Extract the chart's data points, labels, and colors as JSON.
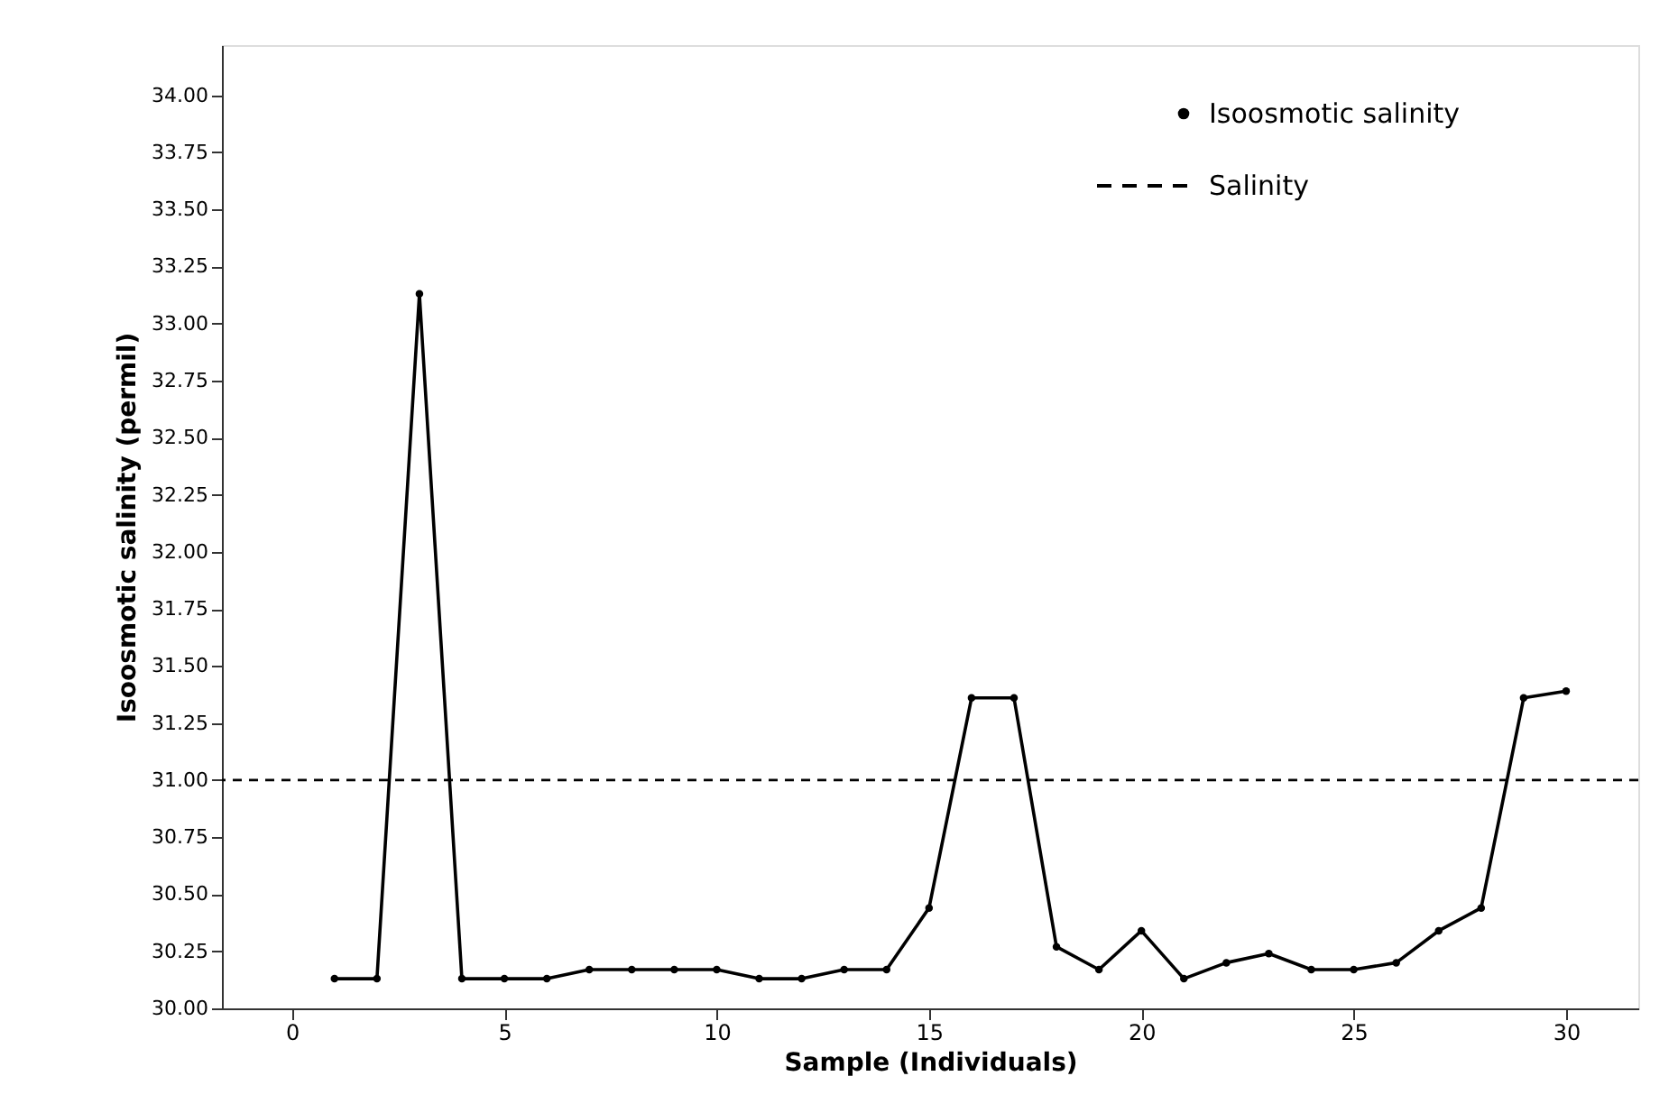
{
  "chart_data": {
    "type": "line",
    "xlabel": "Sample (Individuals)",
    "ylabel": "Isoosmotic salinity (permil)",
    "x": [
      1,
      2,
      3,
      4,
      5,
      6,
      7,
      8,
      9,
      10,
      11,
      12,
      13,
      14,
      15,
      16,
      17,
      18,
      19,
      20,
      21,
      22,
      23,
      24,
      25,
      26,
      27,
      28,
      29,
      30
    ],
    "series": [
      {
        "name": "Isoosmotic salinity",
        "color": "#000000",
        "values": [
          30.13,
          30.13,
          33.13,
          30.13,
          30.13,
          30.13,
          30.17,
          30.17,
          30.17,
          30.17,
          30.13,
          30.13,
          30.17,
          30.17,
          30.44,
          31.36,
          31.36,
          30.27,
          30.17,
          30.34,
          30.13,
          30.2,
          30.24,
          30.17,
          30.17,
          30.2,
          30.34,
          30.44,
          31.36,
          31.39
        ]
      }
    ],
    "ref_lines": [
      {
        "axis": "y",
        "value": 31.0,
        "label": "Salinity",
        "color": "#000000",
        "line_style": "dashed"
      }
    ],
    "xlim": [
      -1.65,
      31.7
    ],
    "ylim": [
      30.0,
      34.22
    ],
    "xticks": [
      0,
      5,
      10,
      15,
      20,
      25,
      30
    ],
    "yticks": [
      {
        "value": 30.0,
        "label": "30.00"
      },
      {
        "value": 30.25,
        "label": "30.25"
      },
      {
        "value": 30.5,
        "label": "30.50"
      },
      {
        "value": 30.75,
        "label": "30.75"
      },
      {
        "value": 31.0,
        "label": "31.00"
      },
      {
        "value": 31.25,
        "label": "31.25"
      },
      {
        "value": 31.5,
        "label": "31.50"
      },
      {
        "value": 31.75,
        "label": "31.75"
      },
      {
        "value": 32.0,
        "label": "32.00"
      },
      {
        "value": 32.25,
        "label": "32.25"
      },
      {
        "value": 32.5,
        "label": "32.50"
      },
      {
        "value": 32.75,
        "label": "32.75"
      },
      {
        "value": 33.0,
        "label": "33.00"
      },
      {
        "value": 33.25,
        "label": "33.25"
      },
      {
        "value": 33.5,
        "label": "33.50"
      },
      {
        "value": 33.75,
        "label": "33.75"
      },
      {
        "value": 34.0,
        "label": "34.00"
      }
    ],
    "grid": false,
    "legend": "top right",
    "marker": "circle",
    "line_style": "solid"
  }
}
